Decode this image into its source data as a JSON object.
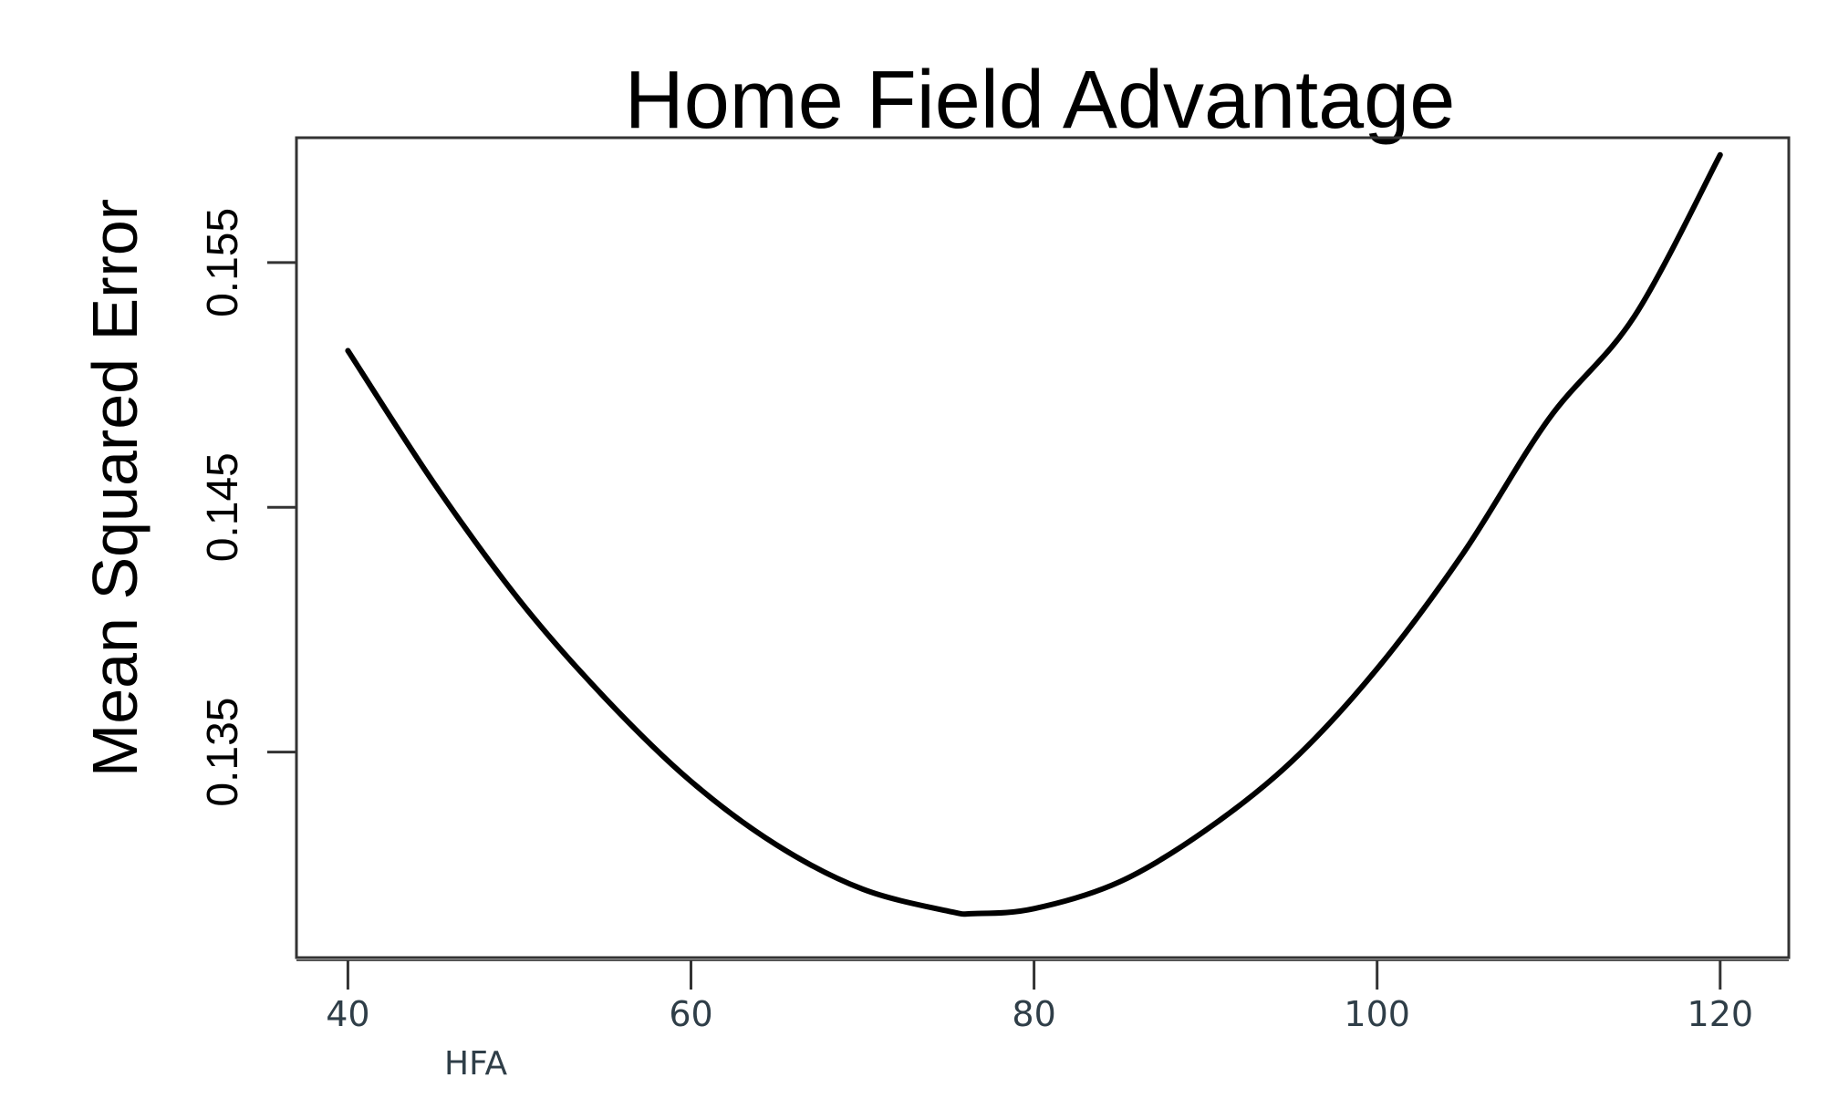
{
  "chart_data": {
    "type": "line",
    "title": "Home Field Advantage",
    "xlabel": "HFA",
    "ylabel": "Mean Squared Error",
    "xlim": [
      37,
      124
    ],
    "ylim": [
      0.1266,
      0.1601
    ],
    "x_ticks": [
      40,
      60,
      80,
      100,
      120
    ],
    "x_tick_labels": [
      "40",
      "60",
      "80",
      "100",
      "120"
    ],
    "y_ticks": [
      0.135,
      0.145,
      0.155
    ],
    "y_tick_labels": [
      "0.135",
      "0.145",
      "0.155"
    ],
    "grid": false,
    "legend": "none",
    "series": [
      {
        "color": "#000000",
        "x": [
          40,
          45,
          50,
          55,
          60,
          65,
          70,
          75,
          76.5,
          80,
          85,
          90,
          95,
          100,
          105,
          110,
          115,
          120
        ],
        "y": [
          0.1514,
          0.146,
          0.1412,
          0.1372,
          0.1338,
          0.1312,
          0.1294,
          0.1285,
          0.1284,
          0.1286,
          0.1297,
          0.1318,
          0.1346,
          0.1384,
          0.1431,
          0.1486,
          0.1528,
          0.1594
        ]
      }
    ]
  }
}
